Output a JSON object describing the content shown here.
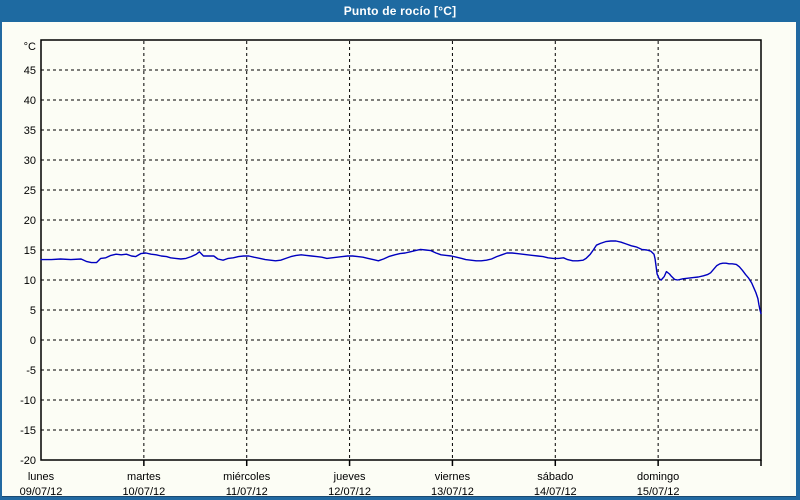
{
  "window": {
    "title": "Punto de rocío [°C]"
  },
  "colors": {
    "titlebar": "#1e6aa1",
    "border_dark": "#1a4a72",
    "background": "#fcfdf5",
    "axis": "#000000",
    "grid": "#000000",
    "line": "#0000bf",
    "label_text": "#000000",
    "title_text": "#ffffff"
  },
  "chart_data": {
    "type": "line",
    "title": "Punto de rocío [°C]",
    "y_unit_label": "°C",
    "ylim": [
      -20,
      50
    ],
    "y_ticks": [
      45,
      40,
      35,
      30,
      25,
      20,
      15,
      10,
      5,
      0,
      -5,
      -10,
      -15,
      -20
    ],
    "grid": "dashed",
    "legend": "none",
    "xlim_days": [
      0,
      7
    ],
    "x_axis": {
      "days": [
        {
          "name": "lunes",
          "date": "09/07/12"
        },
        {
          "name": "martes",
          "date": "10/07/12"
        },
        {
          "name": "miércoles",
          "date": "11/07/12"
        },
        {
          "name": "jueves",
          "date": "12/07/12"
        },
        {
          "name": "viernes",
          "date": "13/07/12"
        },
        {
          "name": "sábado",
          "date": "14/07/12"
        },
        {
          "name": "domingo",
          "date": "15/07/12"
        }
      ]
    },
    "series": [
      {
        "name": "Punto de rocío",
        "color": "#0000bf",
        "x": [
          0.0,
          0.1,
          0.19,
          0.29,
          0.39,
          0.44,
          0.49,
          0.54,
          0.58,
          0.63,
          0.68,
          0.73,
          0.78,
          0.83,
          0.88,
          0.92,
          0.97,
          1.02,
          1.07,
          1.12,
          1.17,
          1.22,
          1.26,
          1.31,
          1.36,
          1.41,
          1.46,
          1.51,
          1.54,
          1.58,
          1.63,
          1.68,
          1.72,
          1.77,
          1.82,
          1.87,
          1.92,
          1.97,
          2.02,
          2.07,
          2.13,
          2.18,
          2.23,
          2.28,
          2.33,
          2.38,
          2.43,
          2.48,
          2.53,
          2.58,
          2.63,
          2.68,
          2.73,
          2.78,
          2.83,
          2.88,
          2.93,
          2.98,
          3.03,
          3.08,
          3.13,
          3.18,
          3.23,
          3.28,
          3.33,
          3.38,
          3.44,
          3.49,
          3.54,
          3.59,
          3.64,
          3.69,
          3.74,
          3.79,
          3.84,
          3.89,
          3.94,
          3.99,
          4.04,
          4.09,
          4.13,
          4.18,
          4.23,
          4.28,
          4.33,
          4.38,
          4.43,
          4.48,
          4.53,
          4.58,
          4.63,
          4.68,
          4.73,
          4.78,
          4.83,
          4.88,
          4.93,
          4.98,
          5.03,
          5.08,
          5.12,
          5.17,
          5.22,
          5.27,
          5.3,
          5.34,
          5.37,
          5.4,
          5.44,
          5.49,
          5.54,
          5.59,
          5.64,
          5.69,
          5.74,
          5.79,
          5.84,
          5.89,
          5.93,
          5.96,
          5.97,
          5.99,
          6.01,
          6.03,
          6.06,
          6.08,
          6.11,
          6.13,
          6.16,
          6.19,
          6.24,
          6.29,
          6.34,
          6.39,
          6.44,
          6.48,
          6.51,
          6.54,
          6.57,
          6.6,
          6.63,
          6.66,
          6.69,
          6.72,
          6.76,
          6.79,
          6.82,
          6.85,
          6.88,
          6.91,
          6.93,
          6.95,
          6.97,
          6.98,
          6.99,
          7.0
        ],
        "y": [
          13.4,
          13.4,
          13.5,
          13.4,
          13.5,
          13.1,
          12.9,
          12.9,
          13.6,
          13.7,
          14.1,
          14.3,
          14.2,
          14.3,
          14.0,
          13.9,
          14.4,
          14.5,
          14.3,
          14.2,
          14.0,
          13.9,
          13.7,
          13.6,
          13.5,
          13.6,
          13.9,
          14.3,
          14.7,
          14.0,
          14.0,
          14.0,
          13.5,
          13.3,
          13.6,
          13.7,
          13.9,
          14.0,
          14.0,
          13.8,
          13.6,
          13.4,
          13.3,
          13.2,
          13.3,
          13.6,
          13.9,
          14.1,
          14.2,
          14.1,
          14.0,
          13.9,
          13.8,
          13.6,
          13.7,
          13.8,
          13.9,
          14.0,
          14.0,
          13.9,
          13.8,
          13.6,
          13.4,
          13.2,
          13.5,
          13.9,
          14.2,
          14.4,
          14.5,
          14.7,
          14.9,
          15.1,
          15.0,
          14.9,
          14.5,
          14.2,
          14.1,
          14.0,
          13.8,
          13.6,
          13.4,
          13.3,
          13.2,
          13.2,
          13.3,
          13.5,
          13.9,
          14.2,
          14.5,
          14.5,
          14.4,
          14.3,
          14.2,
          14.1,
          14.0,
          13.9,
          13.7,
          13.6,
          13.6,
          13.7,
          13.4,
          13.2,
          13.2,
          13.3,
          13.6,
          14.3,
          15.0,
          15.8,
          16.1,
          16.4,
          16.5,
          16.5,
          16.3,
          16.0,
          15.7,
          15.5,
          15.1,
          15.0,
          14.8,
          14.3,
          13.5,
          11.0,
          10.2,
          10.0,
          10.6,
          11.4,
          11.0,
          10.6,
          10.1,
          10.0,
          10.2,
          10.3,
          10.4,
          10.5,
          10.7,
          10.9,
          11.2,
          11.8,
          12.4,
          12.7,
          12.8,
          12.8,
          12.7,
          12.7,
          12.6,
          12.2,
          11.6,
          10.9,
          10.3,
          9.5,
          8.7,
          7.9,
          6.9,
          5.9,
          5.0,
          4.4
        ]
      }
    ]
  }
}
